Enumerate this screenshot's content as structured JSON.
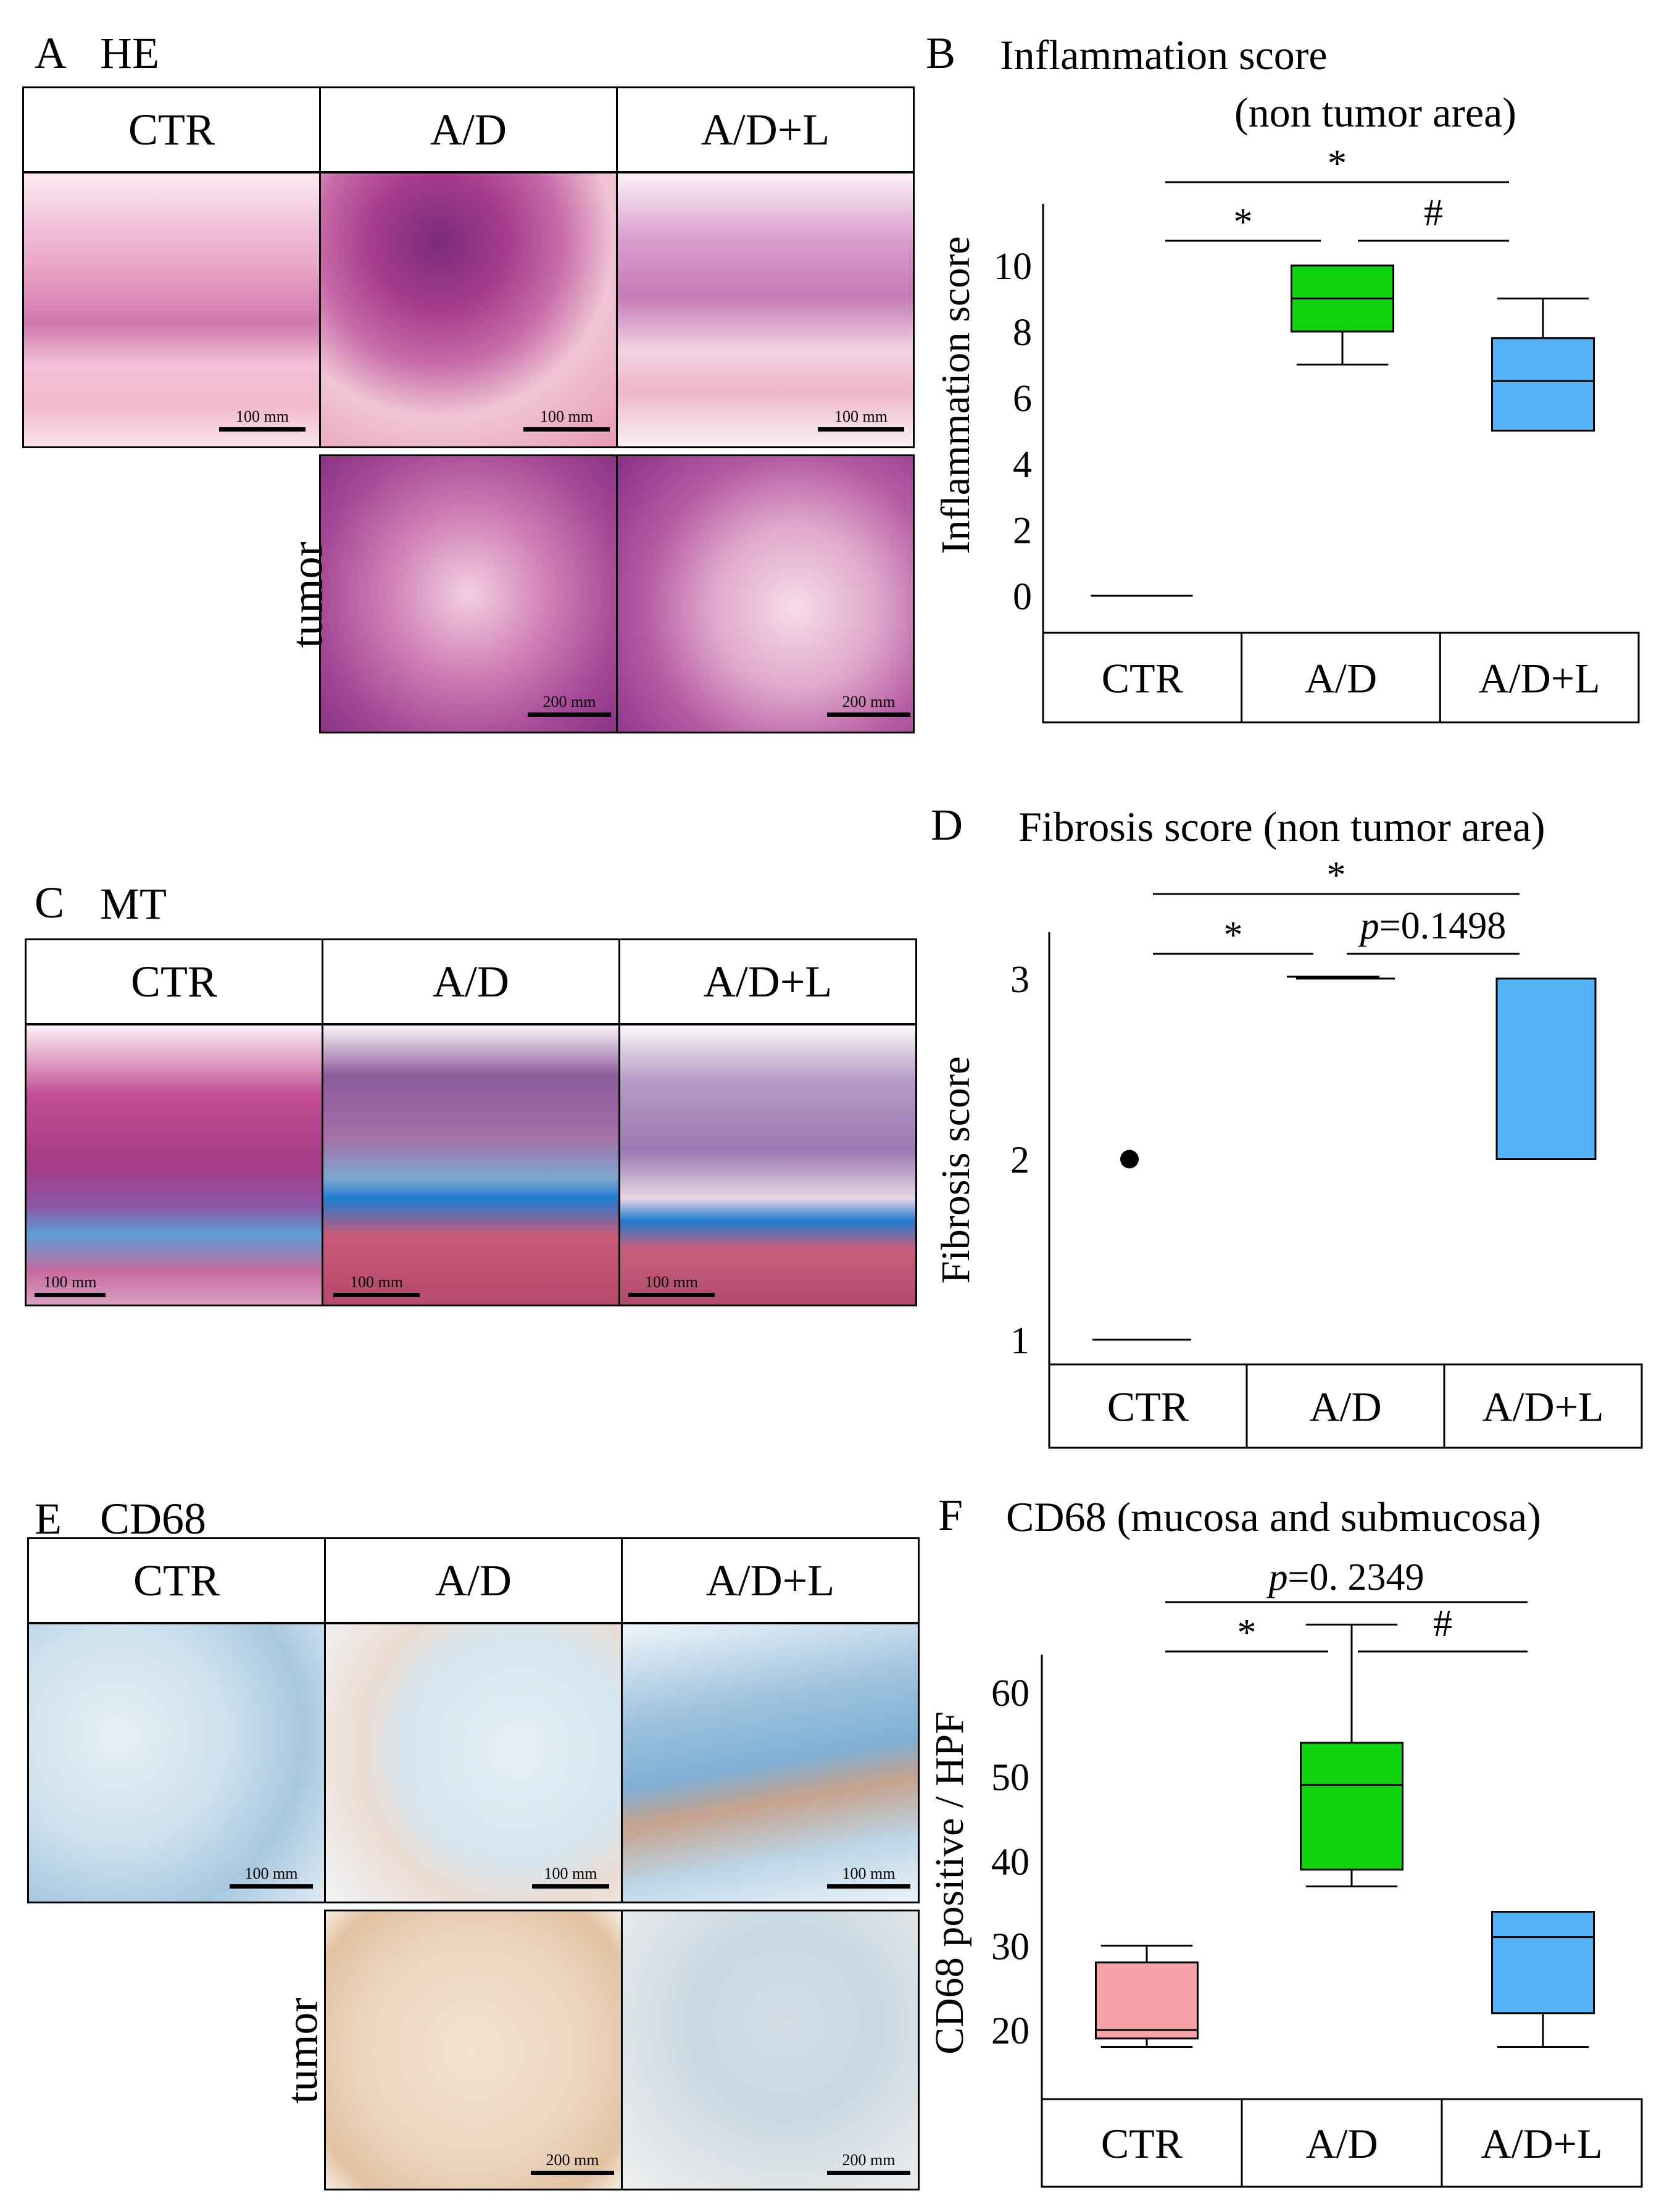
{
  "colors": {
    "ctr": "#f6a0a8",
    "ad": "#11d411",
    "adl": "#55b4f8"
  },
  "groups": [
    "CTR",
    "A/D",
    "A/D+L"
  ],
  "panelA": {
    "letter": "A",
    "title": "HE",
    "row_label": "tumor",
    "scale_normal": "100 mm",
    "scale_tumor": "200 mm"
  },
  "panelC": {
    "letter": "C",
    "title": "MT",
    "scale_normal": "100 mm"
  },
  "panelE": {
    "letter": "E",
    "title": "CD68",
    "row_label": "tumor",
    "scale_normal": "100 mm",
    "scale_tumor": "200 mm"
  },
  "chart_data": [
    {
      "panel": "B",
      "type": "box",
      "title": "Inflammation score",
      "subtitle": "(non tumor area)",
      "ylabel": "Inflammation score",
      "xlabel": "",
      "categories": [
        "CTR",
        "A/D",
        "A/D+L"
      ],
      "ylim": [
        0,
        10
      ],
      "yticks": [
        0,
        2,
        4,
        6,
        8,
        10
      ],
      "boxes": [
        {
          "name": "CTR",
          "min": 0,
          "q1": 0,
          "median": 0,
          "q3": 0,
          "max": 0
        },
        {
          "name": "A/D",
          "min": 7,
          "q1": 8,
          "median": 9,
          "q3": 10,
          "max": 10
        },
        {
          "name": "A/D+L",
          "min": 5,
          "q1": 5,
          "median": 6.5,
          "q3": 7.8,
          "max": 9
        }
      ],
      "significance": [
        {
          "from": "CTR",
          "to": "A/D+L",
          "label": "*"
        },
        {
          "from": "CTR",
          "to": "A/D",
          "label": "*"
        },
        {
          "from": "A/D",
          "to": "A/D+L",
          "label": "#"
        }
      ]
    },
    {
      "panel": "D",
      "type": "box",
      "title": "Fibrosis score (non tumor area)",
      "ylabel": "Fibrosis score",
      "xlabel": "",
      "categories": [
        "CTR",
        "A/D",
        "A/D+L"
      ],
      "ylim": [
        1,
        3
      ],
      "yticks": [
        1,
        2,
        3
      ],
      "boxes": [
        {
          "name": "CTR",
          "min": 1,
          "q1": 1,
          "median": 1,
          "q3": 1,
          "max": 1,
          "outliers": [
            2
          ]
        },
        {
          "name": "A/D",
          "min": 3,
          "q1": 3,
          "median": 3,
          "q3": 3,
          "max": 3
        },
        {
          "name": "A/D+L",
          "min": 2,
          "q1": 2,
          "median": 3,
          "q3": 3,
          "max": 3
        }
      ],
      "significance": [
        {
          "from": "CTR",
          "to": "A/D+L",
          "label": "*"
        },
        {
          "from": "CTR",
          "to": "A/D",
          "label": "*"
        },
        {
          "from": "A/D",
          "to": "A/D+L",
          "label_italic": "p",
          "label": "=0.1498"
        }
      ]
    },
    {
      "panel": "F",
      "type": "box",
      "title": "CD68 (mucosa and submucosa)",
      "ylabel": "CD68 positive / HPF",
      "xlabel": "",
      "categories": [
        "CTR",
        "A/D",
        "A/D+L"
      ],
      "ylim": [
        10,
        67
      ],
      "yticks": [
        20,
        30,
        40,
        50,
        60
      ],
      "boxes": [
        {
          "name": "CTR",
          "min": 18,
          "q1": 19,
          "median": 20,
          "q3": 28,
          "max": 30
        },
        {
          "name": "A/D",
          "min": 37,
          "q1": 39,
          "median": 49,
          "q3": 54,
          "max": 68
        },
        {
          "name": "A/D+L",
          "min": 18,
          "q1": 22,
          "median": 31,
          "q3": 34,
          "max": 34
        }
      ],
      "significance": [
        {
          "from": "CTR",
          "to": "A/D+L",
          "label_italic": "p",
          "label": "=0. 2349"
        },
        {
          "from": "CTR",
          "to": "A/D",
          "label": "*"
        },
        {
          "from": "A/D",
          "to": "A/D+L",
          "label": "#"
        }
      ]
    }
  ]
}
